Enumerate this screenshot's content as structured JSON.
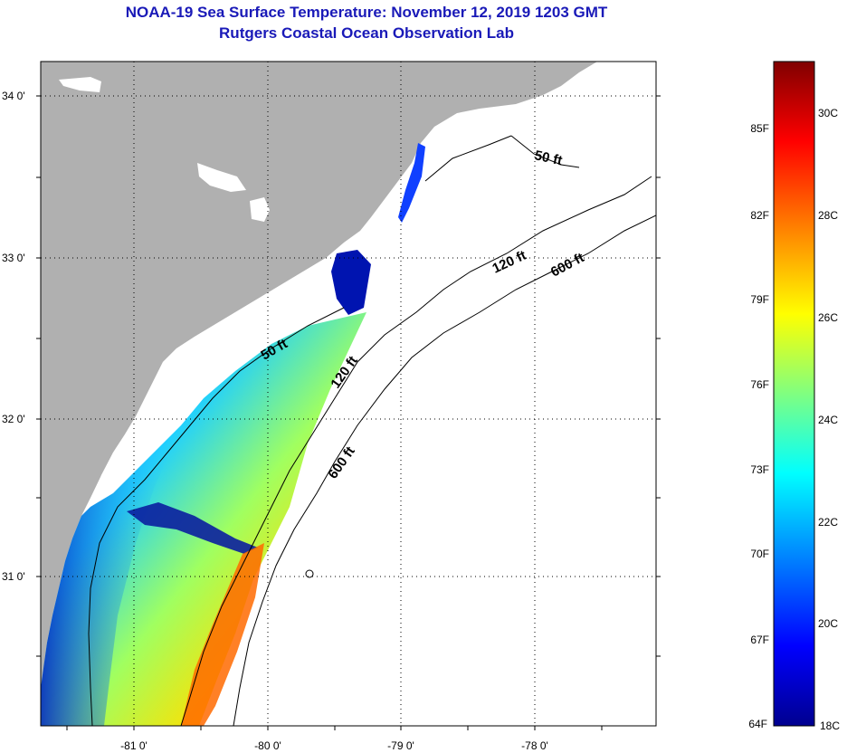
{
  "header": {
    "title_line1": "NOAA-19 Sea Surface Temperature:  November 12, 2019 1203 GMT",
    "title_line2": "Rutgers Coastal Ocean Observation Lab"
  },
  "axes": {
    "lat_labels": [
      "34 0'",
      "33 0'",
      "32 0'",
      "31 0'"
    ],
    "lon_labels": [
      "-81 0'",
      "-80 0'",
      "-79 0'",
      "-78 0'"
    ]
  },
  "contours": {
    "c50_north": "50 ft",
    "c50_south": "50 ft",
    "c120_north": "120 ft",
    "c120_south": "120 ft",
    "c600_north": "600 ft",
    "c600_south": "600 ft"
  },
  "colorbar": {
    "fahrenheit": [
      "85F",
      "82F",
      "79F",
      "76F",
      "73F",
      "70F",
      "67F",
      "64F"
    ],
    "celsius": [
      "30C",
      "28C",
      "26C",
      "24C",
      "22C",
      "20C",
      "18C"
    ],
    "colors": [
      "#00008f",
      "#0000ff",
      "#0080ff",
      "#00ffff",
      "#80ff80",
      "#ffff00",
      "#ff8000",
      "#ff0000",
      "#800000"
    ]
  },
  "colors": {
    "land": "#b0b0b0",
    "title": "#1a1ab8"
  }
}
